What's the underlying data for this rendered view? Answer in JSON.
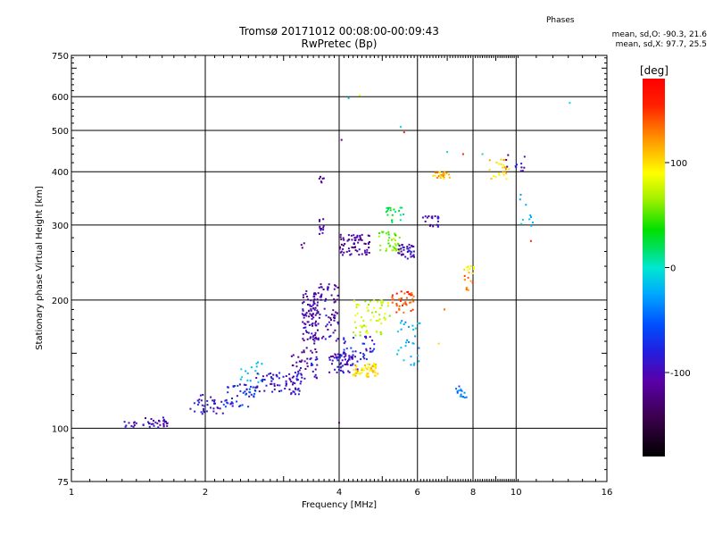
{
  "header": {
    "title": "Tromsø 20171012 00:08:00-00:09:43",
    "subtitle": "RwPretec (Bp)"
  },
  "phase_stats": {
    "heading": "Phases",
    "o_line": "mean, sd,O: -90.3, 21.6",
    "x_line": "mean, sd,X:  97.7, 25.5"
  },
  "colorbar": {
    "label": "[deg]",
    "ticks": [
      100,
      0,
      -100
    ],
    "range": [
      -180,
      180
    ]
  },
  "chart_data": {
    "type": "scatter",
    "xlabel": "Frequency [MHz]",
    "ylabel": "Stationary phase Virtual Height [km]",
    "x_scale": "log",
    "y_scale": "log",
    "xlim": [
      1,
      16
    ],
    "ylim": [
      75,
      750
    ],
    "x_ticks": [
      1,
      2,
      4,
      6,
      8,
      10,
      16
    ],
    "x_gridlines": [
      1,
      2,
      4,
      6,
      8,
      10,
      16
    ],
    "y_ticks": [
      75,
      100,
      200,
      300,
      400,
      500,
      600,
      750
    ],
    "y_gridlines": [
      75,
      100,
      200,
      300,
      400,
      500,
      600,
      750
    ],
    "grid": true,
    "color_encodes": "phase [deg]",
    "clusters": [
      {
        "x": [
          1.3,
          1.4
        ],
        "y": [
          100,
          104
        ],
        "phase": -110,
        "n": 10
      },
      {
        "x": [
          1.45,
          1.65
        ],
        "y": [
          100,
          106
        ],
        "phase": -110,
        "n": 30
      },
      {
        "x": [
          1.85,
          2.2
        ],
        "y": [
          108,
          120
        ],
        "phase": -105,
        "n": 35
      },
      {
        "x": [
          2.2,
          2.6
        ],
        "y": [
          112,
          128
        ],
        "phase": -90,
        "n": 50
      },
      {
        "x": [
          2.4,
          2.7
        ],
        "y": [
          128,
          145
        ],
        "phase": -30,
        "n": 16
      },
      {
        "x": [
          2.6,
          3.3
        ],
        "y": [
          120,
          135
        ],
        "phase": -105,
        "n": 70
      },
      {
        "x": [
          3.1,
          3.6
        ],
        "y": [
          130,
          150
        ],
        "phase": -110,
        "n": 40
      },
      {
        "x": [
          3.3,
          3.6
        ],
        "y": [
          150,
          210
        ],
        "phase": -115,
        "n": 90
      },
      {
        "x": [
          3.5,
          4.0
        ],
        "y": [
          160,
          220
        ],
        "phase": -115,
        "n": 80
      },
      {
        "x": [
          3.25,
          3.35
        ],
        "y": [
          265,
          275
        ],
        "phase": -120,
        "n": 3
      },
      {
        "x": [
          3.6,
          3.7
        ],
        "y": [
          285,
          310
        ],
        "phase": -120,
        "n": 12
      },
      {
        "x": [
          3.6,
          3.7
        ],
        "y": [
          375,
          390
        ],
        "phase": -120,
        "n": 6
      },
      {
        "x": [
          3.8,
          4.4
        ],
        "y": [
          135,
          150
        ],
        "phase": -105,
        "n": 60
      },
      {
        "x": [
          4.0,
          4.8
        ],
        "y": [
          145,
          165
        ],
        "phase": -95,
        "n": 40
      },
      {
        "x": [
          4.0,
          4.7
        ],
        "y": [
          255,
          285
        ],
        "phase": -120,
        "n": 70
      },
      {
        "x": [
          4.3,
          4.9
        ],
        "y": [
          132,
          142
        ],
        "phase": 110,
        "n": 60
      },
      {
        "x": [
          4.3,
          5.2
        ],
        "y": [
          165,
          200
        ],
        "phase": 80,
        "n": 60
      },
      {
        "x": [
          4.9,
          5.5
        ],
        "y": [
          260,
          290
        ],
        "phase": 60,
        "n": 40
      },
      {
        "x": [
          5.1,
          5.6
        ],
        "y": [
          300,
          330
        ],
        "phase": 20,
        "n": 20
      },
      {
        "x": [
          5.4,
          5.9
        ],
        "y": [
          250,
          270
        ],
        "phase": -110,
        "n": 40
      },
      {
        "x": [
          5.2,
          5.9
        ],
        "y": [
          185,
          210
        ],
        "phase": 150,
        "n": 40
      },
      {
        "x": [
          5.4,
          6.1
        ],
        "y": [
          140,
          180
        ],
        "phase": -40,
        "n": 30
      },
      {
        "x": [
          6.1,
          6.7
        ],
        "y": [
          295,
          315
        ],
        "phase": -110,
        "n": 20
      },
      {
        "x": [
          6.5,
          7.1
        ],
        "y": [
          385,
          400
        ],
        "phase": 120,
        "n": 25
      },
      {
        "x": [
          7.3,
          7.8
        ],
        "y": [
          118,
          126
        ],
        "phase": -60,
        "n": 15
      },
      {
        "x": [
          7.6,
          8.1
        ],
        "y": [
          230,
          240
        ],
        "phase": 100,
        "n": 10
      },
      {
        "x": [
          7.6,
          8.0
        ],
        "y": [
          210,
          230
        ],
        "phase": 140,
        "n": 10
      },
      {
        "x": [
          8.7,
          9.7
        ],
        "y": [
          380,
          430
        ],
        "phase": 110,
        "n": 25
      },
      {
        "x": [
          9.5,
          10.5
        ],
        "y": [
          400,
          440
        ],
        "phase": -110,
        "n": 12
      },
      {
        "x": [
          10.2,
          10.9
        ],
        "y": [
          290,
          360
        ],
        "phase": -30,
        "n": 10
      }
    ],
    "outliers": [
      {
        "x": 4.05,
        "y": 475,
        "phase": -120
      },
      {
        "x": 4.2,
        "y": 595,
        "phase": -20
      },
      {
        "x": 4.45,
        "y": 605,
        "phase": 100
      },
      {
        "x": 5.5,
        "y": 510,
        "phase": -20
      },
      {
        "x": 5.6,
        "y": 495,
        "phase": 160
      },
      {
        "x": 4.0,
        "y": 103,
        "phase": -120
      },
      {
        "x": 13.2,
        "y": 580,
        "phase": -20
      },
      {
        "x": 7.0,
        "y": 445,
        "phase": -20
      },
      {
        "x": 8.4,
        "y": 440,
        "phase": 0
      },
      {
        "x": 10.8,
        "y": 275,
        "phase": 160
      },
      {
        "x": 6.9,
        "y": 190,
        "phase": 140
      },
      {
        "x": 6.7,
        "y": 158,
        "phase": 110
      },
      {
        "x": 7.6,
        "y": 440,
        "phase": 160
      }
    ]
  }
}
